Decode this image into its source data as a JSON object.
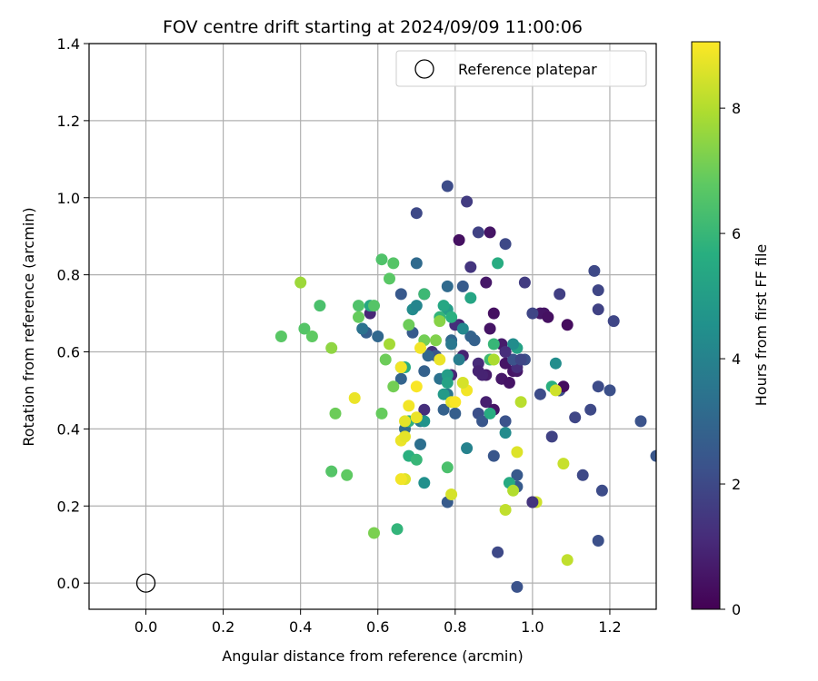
{
  "chart_data": {
    "type": "scatter",
    "title": "FOV centre drift starting at 2024/09/09 11:00:06",
    "xlabel": "Angular distance from reference (arcmin)",
    "ylabel": "Rotation from reference (arcmin)",
    "xlim": [
      -0.147,
      1.32
    ],
    "ylim": [
      -0.068,
      1.4
    ],
    "xticks": [
      "0.0",
      "0.2",
      "0.4",
      "0.6",
      "0.8",
      "1.0",
      "1.2"
    ],
    "yticks": [
      "0.0",
      "0.2",
      "0.4",
      "0.6",
      "0.8",
      "1.0",
      "1.2",
      "1.4"
    ],
    "grid": true,
    "colorbar": {
      "label": "Hours from first FF file",
      "range": [
        0,
        9.06
      ],
      "ticks": [
        "0",
        "2",
        "4",
        "6",
        "8"
      ],
      "colormap": "viridis"
    },
    "legend": {
      "position": "top-right",
      "entries": [
        {
          "label": "Reference platepar",
          "marker": "open-circle"
        }
      ]
    },
    "reference_point": {
      "x": 0.0,
      "y": 0.0
    },
    "series": [
      {
        "points": [
          [
            0.81,
            0.89,
            0.4
          ],
          [
            0.89,
            0.91,
            0.5
          ],
          [
            0.88,
            0.78,
            0.6
          ],
          [
            0.9,
            0.7,
            0.4
          ],
          [
            0.89,
            0.66,
            0.5
          ],
          [
            0.92,
            0.62,
            0.7
          ],
          [
            0.93,
            0.6,
            0.8
          ],
          [
            0.93,
            0.57,
            0.5
          ],
          [
            0.92,
            0.53,
            0.3
          ],
          [
            0.95,
            0.55,
            0.5
          ],
          [
            0.96,
            0.55,
            0.6
          ],
          [
            0.88,
            0.54,
            0.7
          ],
          [
            0.87,
            0.54,
            0.9
          ],
          [
            0.88,
            0.47,
            0.8
          ],
          [
            0.9,
            0.45,
            0.5
          ],
          [
            1.02,
            0.7,
            0.6
          ],
          [
            1.03,
            0.7,
            0.5
          ],
          [
            1.04,
            0.69,
            0.4
          ],
          [
            1.09,
            0.67,
            0.3
          ],
          [
            1.07,
            0.5,
            0.7
          ],
          [
            0.81,
            0.67,
            0.8
          ],
          [
            0.82,
            0.59,
            0.9
          ],
          [
            0.79,
            0.54,
            1.0
          ],
          [
            0.72,
            0.75,
            0.8
          ],
          [
            0.58,
            0.7,
            1.0
          ],
          [
            0.8,
            0.67,
            1.2
          ],
          [
            0.86,
            0.57,
            1.1
          ],
          [
            0.74,
            0.6,
            1.3
          ],
          [
            0.72,
            0.45,
            1.2
          ],
          [
            0.96,
            0.56,
            1.2
          ],
          [
            1.0,
            0.21,
            1.1
          ],
          [
            0.84,
            0.82,
            1.4
          ],
          [
            0.83,
            0.99,
            1.6
          ],
          [
            0.86,
            0.91,
            1.8
          ],
          [
            0.93,
            0.88,
            2.0
          ],
          [
            0.78,
            1.03,
            2.1
          ],
          [
            0.7,
            0.96,
            2.0
          ],
          [
            0.98,
            0.78,
            1.6
          ],
          [
            1.07,
            0.75,
            1.7
          ],
          [
            1.0,
            0.7,
            1.9
          ],
          [
            1.16,
            0.81,
            2.0
          ],
          [
            1.17,
            0.76,
            1.9
          ],
          [
            1.17,
            0.71,
            1.8
          ],
          [
            1.21,
            0.68,
            1.9
          ],
          [
            0.98,
            0.58,
            2.2
          ],
          [
            0.95,
            0.58,
            2.3
          ],
          [
            1.02,
            0.49,
            2.1
          ],
          [
            1.07,
            0.5,
            2.2
          ],
          [
            1.05,
            0.38,
            1.8
          ],
          [
            1.11,
            0.43,
            1.9
          ],
          [
            1.15,
            0.45,
            2.0
          ],
          [
            1.17,
            0.51,
            2.1
          ],
          [
            1.2,
            0.5,
            2.2
          ],
          [
            1.28,
            0.42,
            2.3
          ],
          [
            1.13,
            0.28,
            2.0
          ],
          [
            1.18,
            0.24,
            2.1
          ],
          [
            1.17,
            0.11,
            2.2
          ],
          [
            0.91,
            0.08,
            2.0
          ],
          [
            0.96,
            -0.01,
            2.3
          ],
          [
            0.96,
            0.28,
            2.5
          ],
          [
            0.96,
            0.25,
            2.6
          ],
          [
            0.9,
            0.33,
            2.4
          ],
          [
            0.93,
            0.42,
            2.3
          ],
          [
            0.86,
            0.44,
            2.2
          ],
          [
            0.87,
            0.42,
            2.4
          ],
          [
            0.8,
            0.44,
            2.7
          ],
          [
            0.77,
            0.45,
            2.8
          ],
          [
            0.78,
            0.21,
            2.6
          ],
          [
            0.75,
            0.59,
            2.4
          ],
          [
            0.79,
            0.63,
            3.0
          ],
          [
            0.82,
            0.77,
            2.6
          ],
          [
            0.84,
            0.64,
            2.9
          ],
          [
            0.78,
            0.77,
            3.1
          ],
          [
            0.66,
            0.75,
            2.5
          ],
          [
            0.7,
            0.83,
            3.1
          ],
          [
            0.57,
            0.65,
            2.7
          ],
          [
            0.56,
            0.66,
            3.4
          ],
          [
            0.6,
            0.64,
            3.0
          ],
          [
            0.69,
            0.65,
            2.6
          ],
          [
            0.73,
            0.59,
            3.0
          ],
          [
            0.66,
            0.53,
            2.9
          ],
          [
            0.67,
            0.4,
            3.2
          ],
          [
            0.72,
            0.55,
            2.8
          ],
          [
            0.71,
            0.36,
            3.3
          ],
          [
            0.71,
            0.42,
            3.6
          ],
          [
            0.76,
            0.53,
            3.4
          ],
          [
            0.78,
            0.49,
            3.5
          ],
          [
            0.79,
            0.62,
            3.6
          ],
          [
            0.81,
            0.58,
            3.8
          ],
          [
            0.83,
            0.35,
            4.0
          ],
          [
            0.82,
            0.66,
            4.2
          ],
          [
            0.93,
            0.39,
            4.3
          ],
          [
            1.06,
            0.57,
            4.4
          ],
          [
            0.69,
            0.71,
            4.3
          ],
          [
            0.7,
            0.72,
            4.1
          ],
          [
            0.72,
            0.26,
            4.5
          ],
          [
            0.72,
            0.42,
            4.6
          ],
          [
            0.77,
            0.49,
            4.9
          ],
          [
            0.78,
            0.54,
            5.0
          ],
          [
            0.78,
            0.52,
            5.2
          ],
          [
            0.78,
            0.71,
            5.0
          ],
          [
            0.77,
            0.72,
            5.4
          ],
          [
            0.84,
            0.74,
            5.3
          ],
          [
            0.91,
            0.83,
            5.6
          ],
          [
            0.79,
            0.69,
            5.7
          ],
          [
            0.94,
            0.26,
            5.5
          ],
          [
            0.96,
            0.61,
            5.2
          ],
          [
            1.05,
            0.51,
            5.7
          ],
          [
            0.89,
            0.44,
            5.6
          ],
          [
            0.68,
            0.42,
            5.8
          ],
          [
            0.68,
            0.33,
            5.7
          ],
          [
            0.7,
            0.32,
            6.0
          ],
          [
            0.66,
            0.56,
            5.5
          ],
          [
            0.67,
            0.56,
            5.6
          ],
          [
            0.58,
            0.72,
            5.4
          ],
          [
            0.76,
            0.69,
            5.9
          ],
          [
            0.72,
            0.75,
            6.1
          ],
          [
            0.9,
            0.62,
            6.0
          ],
          [
            0.89,
            0.58,
            6.2
          ],
          [
            0.78,
            0.3,
            6.4
          ],
          [
            0.65,
            0.14,
            5.9
          ],
          [
            0.55,
            0.72,
            6.5
          ],
          [
            0.59,
            0.72,
            6.6
          ],
          [
            0.61,
            0.84,
            6.5
          ],
          [
            0.64,
            0.83,
            6.6
          ],
          [
            0.63,
            0.79,
            6.7
          ],
          [
            0.45,
            0.72,
            6.4
          ],
          [
            0.41,
            0.66,
            6.6
          ],
          [
            0.43,
            0.64,
            6.8
          ],
          [
            0.35,
            0.64,
            6.7
          ],
          [
            0.55,
            0.69,
            6.9
          ],
          [
            0.62,
            0.58,
            7.0
          ],
          [
            0.64,
            0.51,
            7.1
          ],
          [
            0.49,
            0.44,
            7.0
          ],
          [
            0.48,
            0.29,
            6.6
          ],
          [
            0.52,
            0.28,
            6.8
          ],
          [
            0.61,
            0.44,
            6.9
          ],
          [
            0.59,
            0.13,
            7.2
          ],
          [
            0.68,
            0.67,
            7.0
          ],
          [
            0.72,
            0.63,
            7.1
          ],
          [
            0.75,
            0.63,
            7.3
          ],
          [
            0.76,
            0.68,
            7.4
          ],
          [
            0.4,
            0.78,
            7.7
          ],
          [
            0.48,
            0.61,
            7.5
          ],
          [
            0.63,
            0.62,
            7.8
          ],
          [
            0.9,
            0.58,
            7.9
          ],
          [
            0.97,
            0.47,
            8.1
          ],
          [
            0.95,
            0.24,
            8.0
          ],
          [
            0.93,
            0.19,
            8.2
          ],
          [
            1.01,
            0.21,
            8.4
          ],
          [
            1.08,
            0.31,
            8.3
          ],
          [
            1.09,
            0.06,
            8.2
          ],
          [
            0.96,
            0.34,
            8.6
          ],
          [
            0.79,
            0.23,
            8.5
          ],
          [
            0.54,
            0.48,
            8.8
          ],
          [
            0.66,
            0.56,
            8.9
          ],
          [
            0.67,
            0.42,
            8.7
          ],
          [
            0.68,
            0.46,
            8.9
          ],
          [
            0.7,
            0.51,
            9.0
          ],
          [
            0.7,
            0.43,
            8.8
          ],
          [
            0.71,
            0.61,
            8.9
          ],
          [
            0.76,
            0.58,
            8.8
          ],
          [
            0.79,
            0.47,
            8.7
          ],
          [
            0.8,
            0.47,
            9.0
          ],
          [
            0.83,
            0.5,
            8.9
          ],
          [
            0.66,
            0.37,
            8.8
          ],
          [
            0.67,
            0.38,
            8.7
          ],
          [
            0.67,
            0.27,
            8.6
          ],
          [
            0.66,
            0.27,
            8.9
          ],
          [
            0.82,
            0.52,
            8.5
          ],
          [
            0.92,
            0.53,
            0.6
          ],
          [
            0.94,
            0.52,
            0.5
          ],
          [
            1.0,
            0.21,
            1.4
          ],
          [
            0.97,
            0.58,
            1.9
          ],
          [
            1.08,
            0.51,
            0.3
          ],
          [
            0.95,
            0.62,
            4.4
          ],
          [
            0.93,
            0.6,
            1.2
          ],
          [
            0.86,
            0.55,
            0.9
          ],
          [
            0.85,
            0.63,
            2.8
          ],
          [
            1.32,
            0.33,
            2.4
          ],
          [
            1.06,
            0.5,
            8.4
          ]
        ]
      }
    ]
  }
}
